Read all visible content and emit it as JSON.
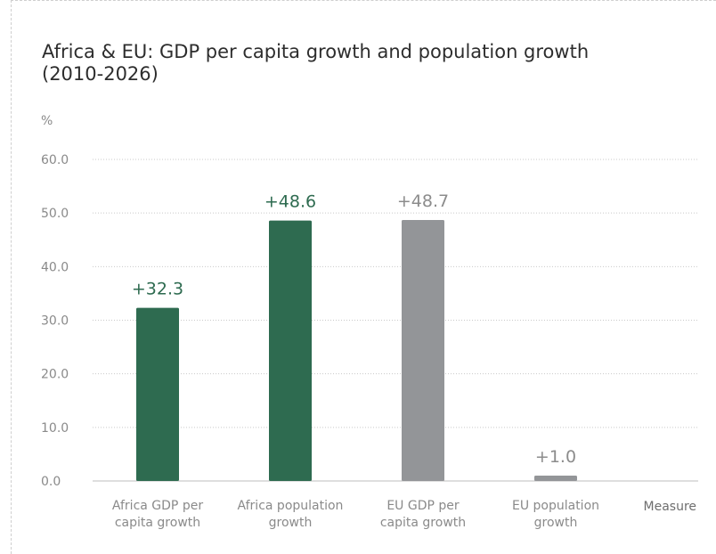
{
  "title": "Africa & EU: GDP per capita growth and population growth (2010-2026)",
  "chart_data": {
    "type": "bar",
    "title": "Africa & EU: GDP per capita growth and population growth (2010-2026)",
    "ylabel": "%",
    "xlabel": "Measure",
    "ylim": [
      0,
      60
    ],
    "yticks": [
      "0.0",
      "10.0",
      "20.0",
      "30.0",
      "40.0",
      "50.0",
      "60.0"
    ],
    "grid": true,
    "categories": [
      [
        "Africa GDP per",
        "capita growth"
      ],
      [
        "Africa population",
        "growth"
      ],
      [
        "EU GDP per",
        "capita growth"
      ],
      [
        "EU population",
        "growth"
      ]
    ],
    "values": [
      32.3,
      48.6,
      48.7,
      1.0
    ],
    "data_labels": [
      "+32.3",
      "+48.6",
      "+48.7",
      "+1.0"
    ],
    "colors": [
      "#2e6b50",
      "#2e6b50",
      "#939598",
      "#939598"
    ]
  }
}
